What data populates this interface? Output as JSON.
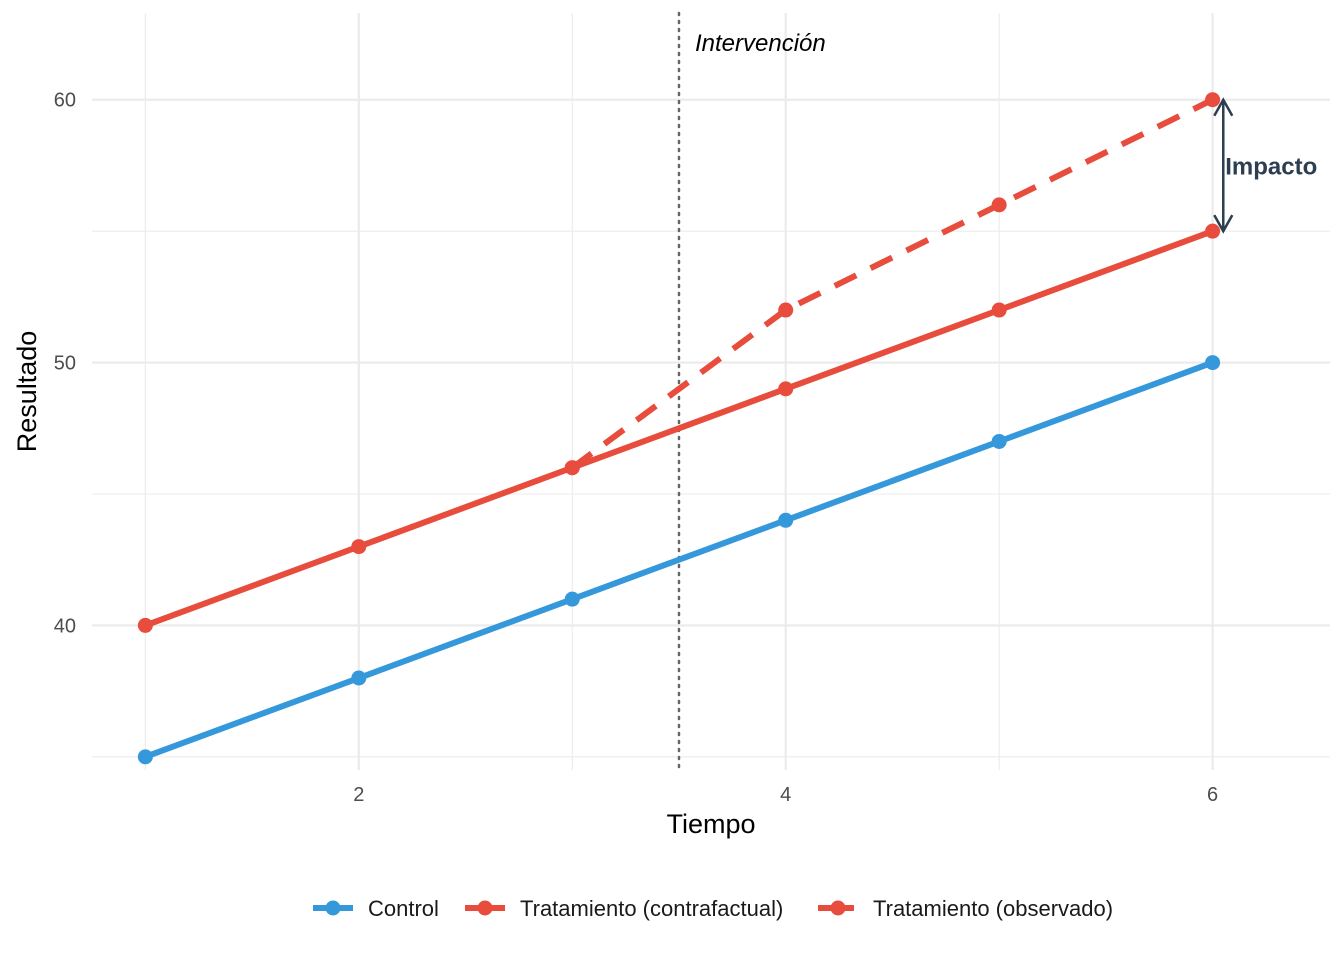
{
  "chart_data": {
    "type": "line",
    "title": "",
    "xlabel": "Tiempo",
    "ylabel": "Resultado",
    "xlim": [
      0.75,
      6.55
    ],
    "ylim": [
      34.5,
      63.3
    ],
    "x_ticks": [
      2,
      4,
      6
    ],
    "y_ticks": [
      40,
      50,
      60
    ],
    "x": [
      1,
      2,
      3,
      4,
      5,
      6
    ],
    "grid": true,
    "legend_position": "bottom",
    "series": [
      {
        "name": "Control",
        "x": [
          1,
          2,
          3,
          4,
          5,
          6
        ],
        "values": [
          35,
          38,
          41,
          44,
          47,
          50
        ],
        "color": "#3498DB",
        "linestyle": "solid"
      },
      {
        "name": "Tratamiento (contrafactual)",
        "x": [
          1,
          2,
          3,
          4,
          5,
          6
        ],
        "values": [
          40,
          43,
          46,
          49,
          52,
          55
        ],
        "color": "#E74C3C",
        "linestyle": "solid"
      },
      {
        "name": "Tratamiento (observado)",
        "x": [
          3,
          4,
          5,
          6
        ],
        "values": [
          46,
          52,
          56,
          60
        ],
        "color": "#E74C3C",
        "linestyle": "dashed"
      }
    ],
    "annotations": [
      {
        "type": "vline",
        "x": 3.5,
        "text": "Intervención",
        "text_y": 62.2,
        "style": "dotted",
        "color": "#666666"
      },
      {
        "type": "double-arrow",
        "x": 6.05,
        "y_from": 55,
        "y_to": 60,
        "text": "Impacto",
        "text_y": 57.5,
        "color": "#2C3E50"
      }
    ]
  }
}
